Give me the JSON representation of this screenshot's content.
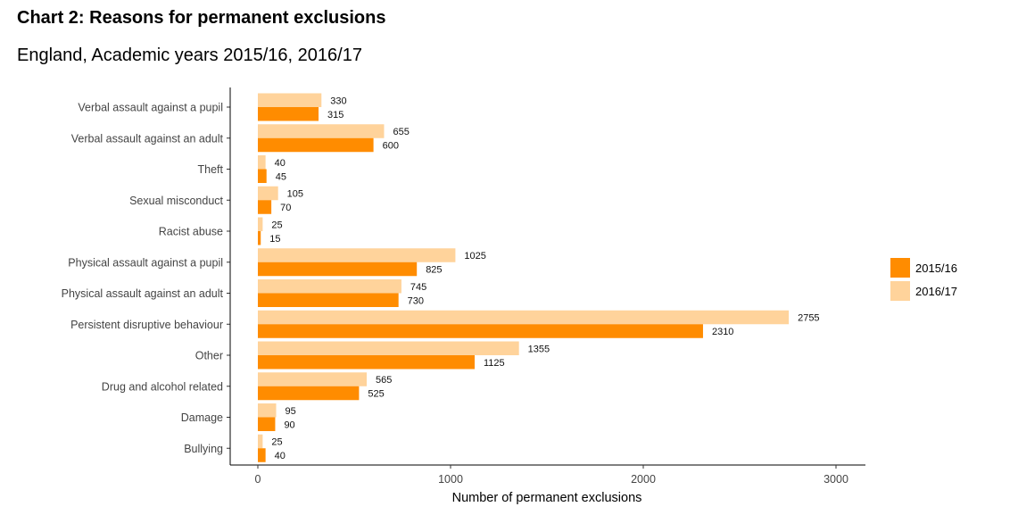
{
  "title": "Chart 2: Reasons for permanent exclusions",
  "subtitle": "England, Academic years 2015/16, 2016/17",
  "chart_data": {
    "type": "bar",
    "orientation": "horizontal",
    "categories": [
      "Verbal assault against a pupil",
      "Verbal assault against an adult",
      "Theft",
      "Sexual misconduct",
      "Racist abuse",
      "Physical assault against a pupil",
      "Physical assault against an adult",
      "Persistent disruptive behaviour",
      "Other",
      "Drug and alcohol related",
      "Damage",
      "Bullying"
    ],
    "series": [
      {
        "name": "2016/17",
        "color": "#ffd39b",
        "values": [
          330,
          655,
          40,
          105,
          25,
          1025,
          745,
          2755,
          1355,
          565,
          95,
          25
        ]
      },
      {
        "name": "2015/16",
        "color": "#ff8c00",
        "values": [
          315,
          600,
          45,
          70,
          15,
          825,
          730,
          2310,
          1125,
          525,
          90,
          40
        ]
      }
    ],
    "legend_order": [
      "2015/16",
      "2016/17"
    ],
    "legend_position": "right",
    "xlabel": "Number of permanent exclusions",
    "xlim": [
      -150,
      3150
    ],
    "xticks": [
      0,
      1000,
      2000,
      3000
    ],
    "grid": false,
    "data_labels": true
  }
}
